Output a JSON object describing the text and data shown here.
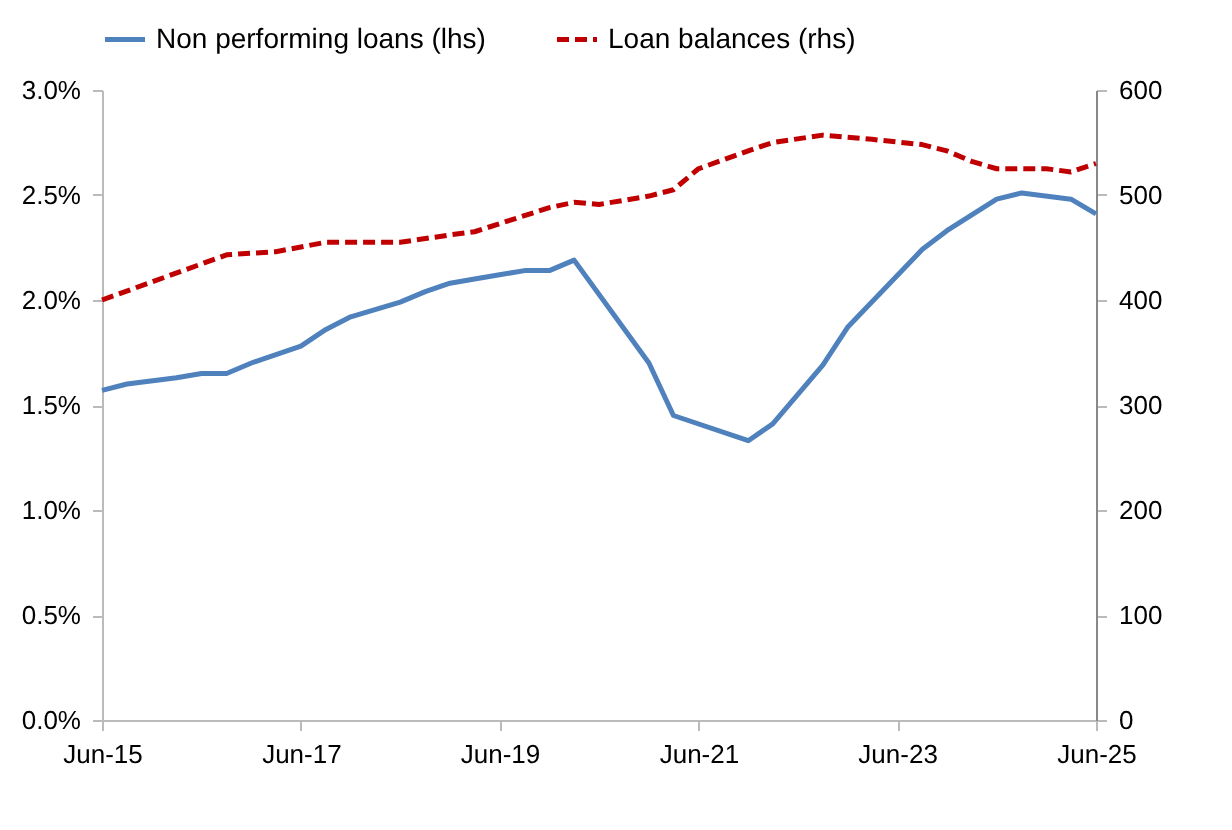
{
  "chart_data": {
    "type": "line",
    "legend": "top",
    "xlim": [
      "2015-06",
      "2025-06"
    ],
    "xticks": [
      {
        "value": "2015-06",
        "label": "Jun-15"
      },
      {
        "value": "2017-06",
        "label": "Jun-17"
      },
      {
        "value": "2019-06",
        "label": "Jun-19"
      },
      {
        "value": "2021-06",
        "label": "Jun-21"
      },
      {
        "value": "2023-06",
        "label": "Jun-23"
      },
      {
        "value": "2025-06",
        "label": "Jun-25"
      }
    ],
    "ylim": [
      0,
      3
    ],
    "yticks": [
      {
        "value": 0,
        "label": "0.0%"
      },
      {
        "value": 0.5,
        "label": "0.5%"
      },
      {
        "value": 1,
        "label": "1.0%"
      },
      {
        "value": 1.5,
        "label": "1.5%"
      },
      {
        "value": 2,
        "label": "2.0%"
      },
      {
        "value": 2.5,
        "label": "2.5%"
      },
      {
        "value": 3,
        "label": "3.0%"
      }
    ],
    "y2lim": [
      0,
      600
    ],
    "y2ticks": [
      0,
      100,
      200,
      300,
      400,
      500,
      600
    ],
    "series": [
      {
        "name": "Non performing loans (lhs)",
        "color": "#4f81bd",
        "line_style": "solid",
        "x": [
          "2015-06",
          "2015-09",
          "2016-03",
          "2016-06",
          "2016-09",
          "2016-12",
          "2017-06",
          "2017-09",
          "2017-12",
          "2018-06",
          "2018-09",
          "2018-12",
          "2019-03",
          "2019-06",
          "2019-09",
          "2019-12",
          "2020-03",
          "2020-12",
          "2021-03",
          "2021-12",
          "2022-03",
          "2022-09",
          "2022-12",
          "2023-09",
          "2023-12",
          "2024-06",
          "2024-09",
          "2025-03",
          "2025-06"
        ],
        "values": [
          1.57,
          1.6,
          1.63,
          1.65,
          1.65,
          1.7,
          1.78,
          1.86,
          1.92,
          1.99,
          2.04,
          2.08,
          2.1,
          2.12,
          2.14,
          2.14,
          2.19,
          1.7,
          1.45,
          1.33,
          1.41,
          1.69,
          1.87,
          2.24,
          2.33,
          2.48,
          2.51,
          2.48,
          2.41
        ]
      },
      {
        "name": "Loan balances (rhs)",
        "color": "#c00000",
        "line_style": "dashed",
        "axis": "y2",
        "x": [
          "2015-06",
          "2016-09",
          "2017-03",
          "2017-09",
          "2018-06",
          "2018-12",
          "2019-03",
          "2019-12",
          "2020-03",
          "2020-06",
          "2020-12",
          "2021-03",
          "2021-06",
          "2021-12",
          "2022-03",
          "2022-09",
          "2023-03",
          "2023-09",
          "2023-12",
          "2024-03",
          "2024-06",
          "2024-12",
          "2025-03",
          "2025-06"
        ],
        "values": [
          400,
          443,
          446,
          455,
          455,
          462,
          465,
          488,
          493,
          491,
          499,
          505,
          525,
          542,
          550,
          557,
          553,
          548,
          542,
          532,
          525,
          525,
          522,
          530
        ]
      }
    ]
  }
}
